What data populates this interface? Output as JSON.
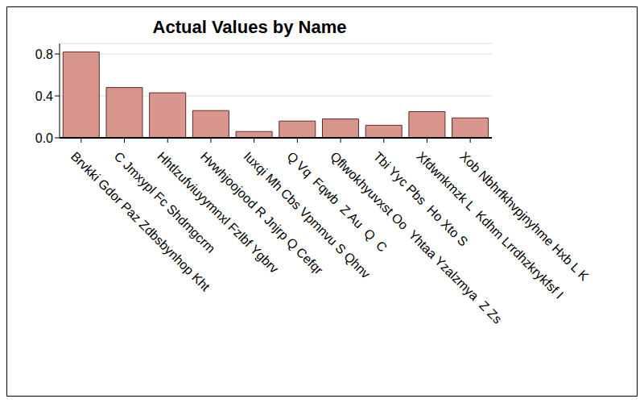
{
  "chart_data": {
    "type": "bar",
    "title": "Actual Values by Name",
    "categories": [
      "Brvkki Gdor Paz Zdbsbynhop Kht",
      "C Jmxypl Fc Shdmgcrm",
      "Hhtlzufviuyymnxl Fzlbf Ygbrv",
      "Hvwhjoojood R Jnjrp Q Cefqr",
      "Iuxqi Mh Cbs Vpmnvu S Qhnv",
      "Q Vq  Fqwb  Z Au  Q  C",
      "Qflwokhyuvxst Oo  Yhtaa Yzalzmya  Z Zs",
      "Tbi Yyc Pbs  Ho Xto S",
      "Xfdwnkmzk L  Kdhm Lrrdhzkrykfsf I",
      "Xob Nbhrfkhvpjnyhme Hxb L K"
    ],
    "values": [
      0.82,
      0.48,
      0.43,
      0.26,
      0.06,
      0.16,
      0.18,
      0.12,
      0.25,
      0.19
    ],
    "color": "#d9968c",
    "ylim": [
      0,
      0.9
    ],
    "yticks": [
      {
        "value": 0,
        "label": "0.0"
      },
      0.4,
      0.8
    ],
    "grid": true
  }
}
